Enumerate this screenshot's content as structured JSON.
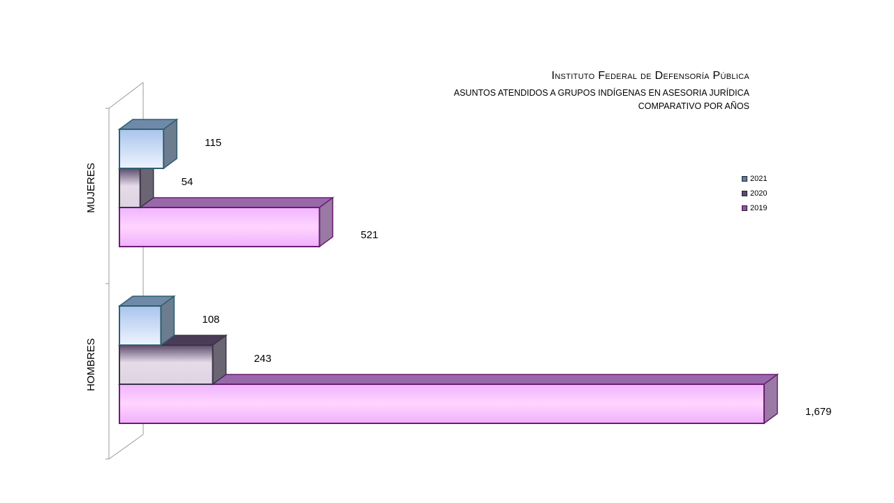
{
  "chart_data": {
    "type": "bar",
    "orientation": "horizontal",
    "title": "Instituto Federal de Defensoría Pública",
    "subtitle_lines": [
      "ASUNTOS ATENDIDOS A GRUPOS INDÍGENAS  EN ASESORIA JURÍDICA",
      "COMPARATIVO POR AÑOS"
    ],
    "categories": [
      "MUJERES",
      "HOMBRES"
    ],
    "series": [
      {
        "name": "2021",
        "values": [
          115,
          108
        ],
        "color": "#5a7fa6",
        "labels": [
          "115",
          "108"
        ]
      },
      {
        "name": "2020",
        "values": [
          54,
          243
        ],
        "color": "#5c4a6e",
        "labels": [
          "54",
          "243"
        ]
      },
      {
        "name": "2019",
        "values": [
          521,
          1679
        ],
        "color": "#9a4bb0",
        "labels": [
          "521",
          "1,679"
        ]
      }
    ],
    "xlim": [
      0,
      1679
    ],
    "grid": false,
    "legend_position": "right"
  }
}
